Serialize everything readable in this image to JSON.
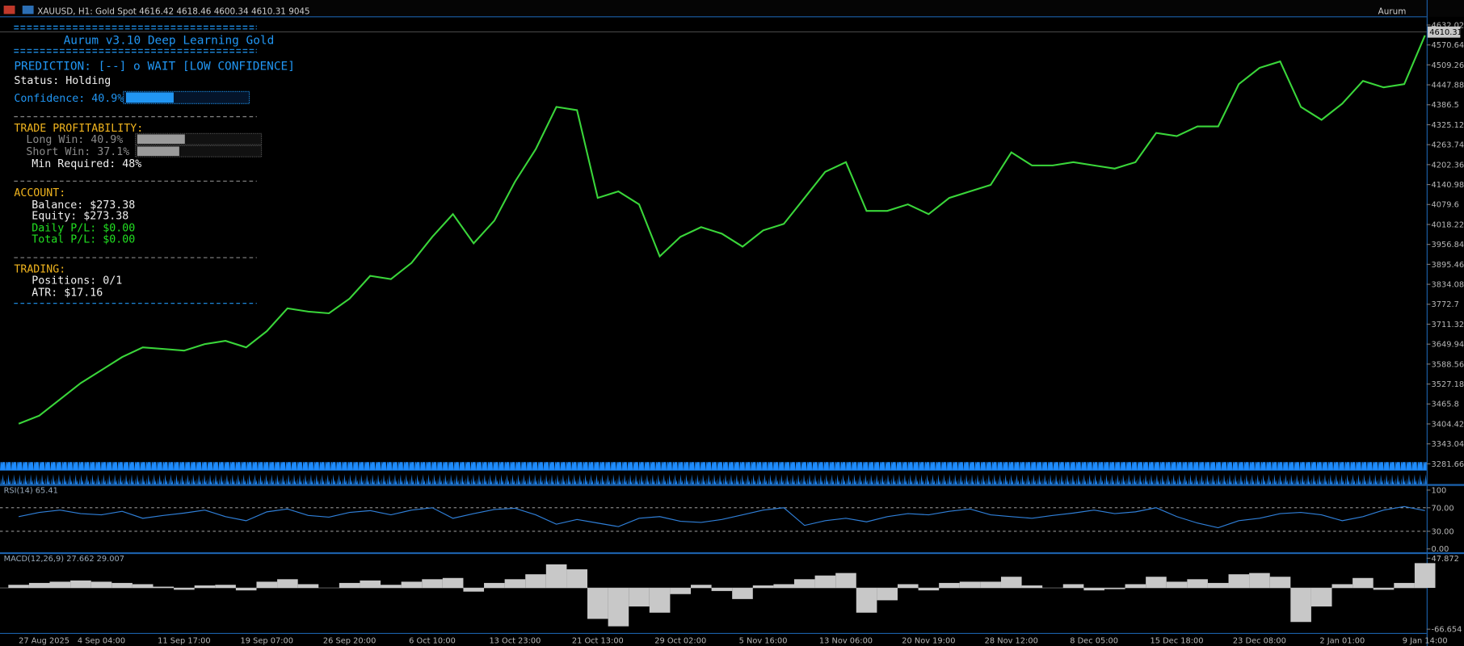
{
  "header": {
    "symbol": "XAUUSD, H1:  Gold Spot  4616.42 4618.46 4600.34 4610.31  9045",
    "ea": "Aurum"
  },
  "panel": {
    "title": "Aurum v3.10 Deep Learning Gold",
    "prediction": "PREDICTION: [--] o WAIT [LOW CONFIDENCE]",
    "status": "Status: Holding",
    "confidence": "Confidence: 40.9%",
    "profit_heading": "TRADE PROFITABILITY:",
    "long_win": "Long Win:   40.9%",
    "short_win": "Short Win:  37.1%",
    "min_required": "Min Required: 48%",
    "account_heading": "ACCOUNT:",
    "balance": "Balance: $273.38",
    "equity": "Equity:  $273.38",
    "daily_pl": "Daily P/L: $0.00",
    "total_pl": "Total P/L: $0.00",
    "trading_heading": "TRADING:",
    "positions": "Positions: 0/1",
    "atr": "ATR: $17.16"
  },
  "chart_data": [
    {
      "type": "line",
      "color": "#3ad63a",
      "values": [
        3405,
        3430,
        3480,
        3530,
        3570,
        3610,
        3640,
        3635,
        3630,
        3650,
        3660,
        3640,
        3690,
        3760,
        3750,
        3745,
        3790,
        3860,
        3850,
        3900,
        3980,
        4050,
        3960,
        4030,
        4150,
        4250,
        4380,
        4370,
        4100,
        4120,
        4080,
        3920,
        3980,
        4010,
        3990,
        3950,
        4000,
        4020,
        4100,
        4180,
        4210,
        4060,
        4060,
        4080,
        4050,
        4100,
        4120,
        4140,
        4240,
        4200,
        4200,
        4210,
        4200,
        4190,
        4210,
        4300,
        4290,
        4320,
        4320,
        4450,
        4500,
        4520,
        4380,
        4340,
        4390,
        4460,
        4440,
        4450,
        4600
      ],
      "ylim": [
        3218,
        4640
      ],
      "yticks": [
        4632.02,
        4570.64,
        4509.26,
        4447.88,
        4386.5,
        4325.12,
        4263.74,
        4202.36,
        4140.98,
        4079.6,
        4018.22,
        3956.84,
        3895.46,
        3834.08,
        3772.7,
        3711.32,
        3649.94,
        3588.56,
        3527.18,
        3465.8,
        3404.42,
        3343.04,
        3281.66
      ],
      "last_price": 4610.31
    },
    {
      "type": "line",
      "title": "RSI(14) 65.41",
      "color": "#2f7fd8",
      "values": [
        55,
        62,
        66,
        60,
        58,
        64,
        52,
        57,
        61,
        66,
        55,
        48,
        63,
        68,
        57,
        54,
        62,
        65,
        58,
        66,
        70,
        52,
        60,
        67,
        69,
        58,
        42,
        50,
        44,
        38,
        52,
        55,
        47,
        45,
        50,
        58,
        66,
        70,
        40,
        48,
        52,
        46,
        55,
        60,
        58,
        64,
        68,
        58,
        55,
        52,
        57,
        61,
        66,
        60,
        63,
        70,
        55,
        44,
        36,
        48,
        52,
        60,
        62,
        58,
        48,
        55,
        66,
        72,
        65
      ],
      "ylim": [
        0,
        100
      ],
      "yticks": [
        100,
        {
          "value": 70,
          "label": "70.00"
        },
        {
          "value": 30,
          "label": "30.00"
        },
        {
          "value": 0,
          "label": "0.00"
        }
      ],
      "grid": "dashed"
    },
    {
      "type": "bar",
      "title": "MACD(12,26,9) 27.662 29.007",
      "color": "#c8c8c8",
      "categories": [
        "27 Aug 2025",
        null,
        null,
        null,
        "4 Sep 04:00",
        null,
        null,
        null,
        "11 Sep 17:00",
        null,
        null,
        null,
        "19 Sep 07:00",
        null,
        null,
        null,
        "26 Sep 20:00",
        null,
        null,
        null,
        "6 Oct 10:00",
        null,
        null,
        null,
        "13 Oct 23:00",
        null,
        null,
        null,
        "21 Oct 13:00",
        null,
        null,
        null,
        "29 Oct 02:00",
        null,
        null,
        null,
        "5 Nov 16:00",
        null,
        null,
        null,
        "13 Nov 06:00",
        null,
        null,
        null,
        "20 Nov 19:00",
        null,
        null,
        null,
        "28 Nov 12:00",
        null,
        null,
        null,
        "8 Dec 05:00",
        null,
        null,
        null,
        "15 Dec 18:00",
        null,
        null,
        null,
        "23 Dec 08:00",
        null,
        null,
        null,
        "2 Jan 01:00",
        null,
        null,
        null,
        "9 Jan 14:00"
      ],
      "values": [
        5,
        8,
        10,
        12,
        10,
        8,
        6,
        2,
        -3,
        4,
        5,
        -4,
        10,
        14,
        6,
        0,
        8,
        12,
        5,
        10,
        14,
        16,
        -6,
        8,
        14,
        22,
        38,
        30,
        -50,
        -62,
        -30,
        -40,
        -10,
        5,
        -5,
        -18,
        4,
        6,
        14,
        20,
        24,
        -40,
        -20,
        6,
        -4,
        8,
        10,
        10,
        18,
        4,
        0,
        6,
        -4,
        -2,
        6,
        18,
        10,
        14,
        8,
        22,
        24,
        18,
        -55,
        -30,
        6,
        16,
        -3,
        8,
        40
      ],
      "ylim": [
        -66.654,
        47.872
      ],
      "yticks": [
        47.872,
        -66.654
      ]
    }
  ]
}
